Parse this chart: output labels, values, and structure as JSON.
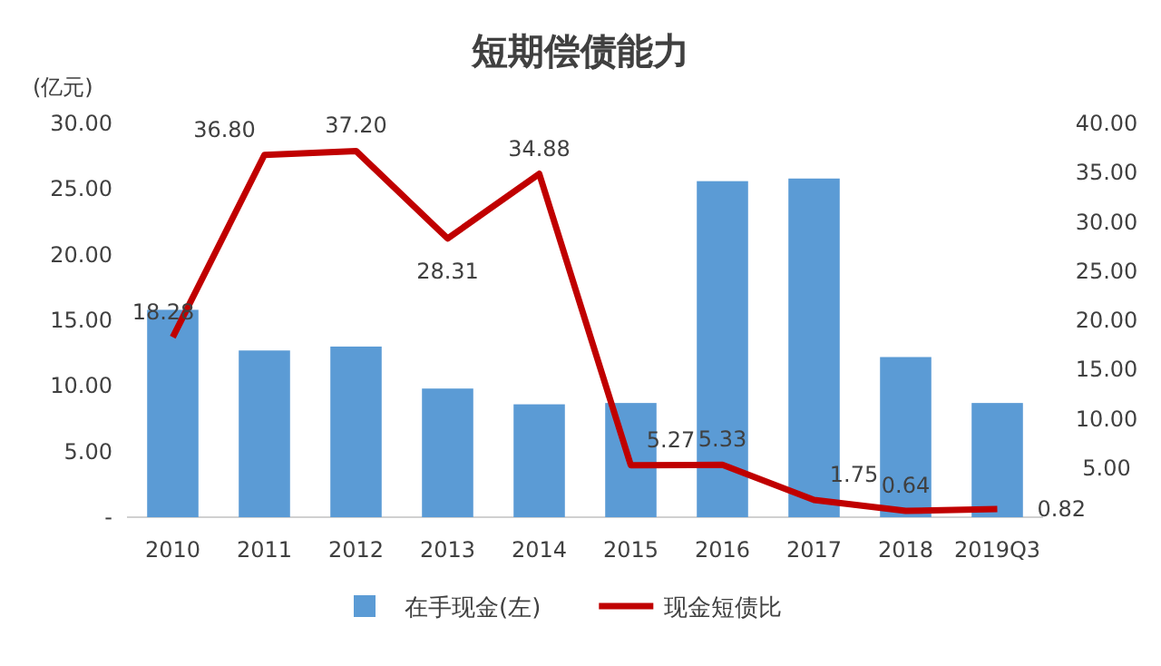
{
  "chart_data": {
    "type": "bar",
    "title": "短期偿债能力",
    "ylabel": "(亿元)",
    "categories": [
      "2010",
      "2011",
      "2012",
      "2013",
      "2014",
      "2015",
      "2016",
      "2017",
      "2018",
      "2019Q3"
    ],
    "series": [
      {
        "name": "在手现金(左)",
        "color": "#5b9bd5",
        "values": [
          15.8,
          12.7,
          13.0,
          9.8,
          8.6,
          8.7,
          25.6,
          25.8,
          12.2,
          8.7
        ]
      },
      {
        "name": "现金短债比",
        "type": "line",
        "axis": "y2",
        "color": "#c00000",
        "values": [
          18.28,
          36.8,
          37.2,
          28.31,
          34.88,
          5.27,
          5.33,
          1.75,
          0.64,
          0.82
        ],
        "value_labels": [
          "18.28",
          "36.80",
          "37.20",
          "28.31",
          "34.88",
          "5.27",
          "5.33",
          "1.75",
          "0.64",
          "0.82"
        ]
      }
    ],
    "ylim": [
      0,
      30
    ],
    "yticks": [
      {
        "value": 0,
        "label": "-"
      },
      {
        "value": 5,
        "label": "5.00"
      },
      {
        "value": 10,
        "label": "10.00"
      },
      {
        "value": 15,
        "label": "15.00"
      },
      {
        "value": 20,
        "label": "20.00"
      },
      {
        "value": 25,
        "label": "25.00"
      },
      {
        "value": 30,
        "label": "30.00"
      }
    ],
    "y2lim": [
      0,
      40
    ],
    "y2ticks": [
      {
        "value": 5,
        "label": "5.00"
      },
      {
        "value": 10,
        "label": "10.00"
      },
      {
        "value": 15,
        "label": "15.00"
      },
      {
        "value": 20,
        "label": "20.00"
      },
      {
        "value": 25,
        "label": "25.00"
      },
      {
        "value": 30,
        "label": "30.00"
      },
      {
        "value": 35,
        "label": "35.00"
      },
      {
        "value": 40,
        "label": "40.00"
      }
    ],
    "legend": "bottom"
  }
}
